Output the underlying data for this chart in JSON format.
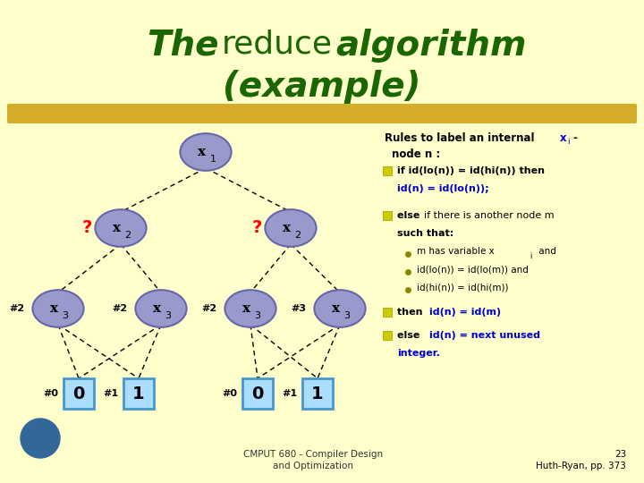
{
  "bg_color": "#FFFFCC",
  "title_color": "#1a6600",
  "node_color": "#9999cc",
  "node_border": "#6666aa",
  "leaf_color": "#aaddff",
  "leaf_border": "#4499cc",
  "blue_color": "#0000cc",
  "bullet_color": "#cccc00",
  "bottom_text1": "CMPUT 680 - Compiler Design",
  "bottom_text2": "and Optimization",
  "page_num": "23",
  "page_ref": "Huth-Ryan, pp. 373"
}
